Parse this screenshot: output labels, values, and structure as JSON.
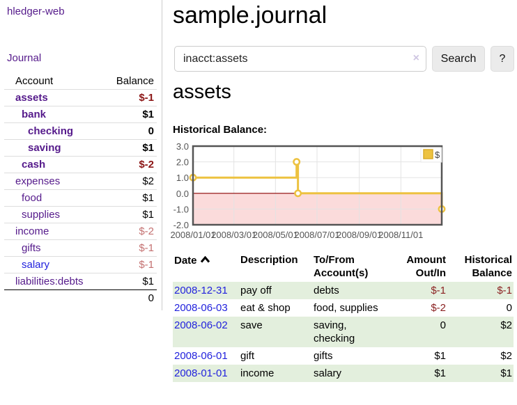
{
  "app": {
    "brand": "hledger-web",
    "nav_journal": "Journal"
  },
  "sidebar": {
    "header": {
      "account": "Account",
      "balance": "Balance"
    },
    "accounts": [
      {
        "name": "assets",
        "level": 0,
        "bold": true,
        "link": "purple",
        "balance": "$-1",
        "balance_class": "neg-strong"
      },
      {
        "name": "bank",
        "level": 1,
        "bold": true,
        "link": "purple",
        "balance": "$1",
        "balance_class": "pos-strong"
      },
      {
        "name": "checking",
        "level": 2,
        "bold": true,
        "link": "purple",
        "balance": "0",
        "balance_class": "pos-strong"
      },
      {
        "name": "saving",
        "level": 2,
        "bold": true,
        "link": "purple",
        "balance": "$1",
        "balance_class": "pos-strong"
      },
      {
        "name": "cash",
        "level": 1,
        "bold": true,
        "link": "purple",
        "balance": "$-2",
        "balance_class": "neg-strong"
      },
      {
        "name": "expenses",
        "level": 0,
        "bold": false,
        "link": "purple",
        "balance": "$2",
        "balance_class": "pos"
      },
      {
        "name": "food",
        "level": 1,
        "bold": false,
        "link": "purple",
        "balance": "$1",
        "balance_class": "pos"
      },
      {
        "name": "supplies",
        "level": 1,
        "bold": false,
        "link": "purple",
        "balance": "$1",
        "balance_class": "pos"
      },
      {
        "name": "income",
        "level": 0,
        "bold": false,
        "link": "purple",
        "balance": "$-2",
        "balance_class": "neg-soft"
      },
      {
        "name": "gifts",
        "level": 1,
        "bold": false,
        "link": "purple",
        "balance": "$-1",
        "balance_class": "neg-soft"
      },
      {
        "name": "salary",
        "level": 1,
        "bold": false,
        "link": "blue",
        "balance": "$-1",
        "balance_class": "neg-soft"
      },
      {
        "name": "liabilities:debts",
        "level": 0,
        "bold": false,
        "link": "purple",
        "balance": "$1",
        "balance_class": "pos"
      }
    ],
    "total": "0"
  },
  "header": {
    "title": "sample.journal"
  },
  "search": {
    "value": "inacct:assets",
    "clear_icon": "×",
    "button": "Search",
    "help": "?"
  },
  "account_page": {
    "title": "assets",
    "chart_label": "Historical Balance:"
  },
  "chart_data": {
    "type": "line",
    "title": "Historical Balance:",
    "series": [
      {
        "name": "$",
        "color": "#edc240",
        "step": true,
        "points": [
          [
            "2008-01-01",
            1
          ],
          [
            "2008-06-01",
            2
          ],
          [
            "2008-06-03",
            0
          ],
          [
            "2008-12-31",
            -1
          ]
        ]
      }
    ],
    "xlim": [
      "2008-01-01",
      "2008-12-31"
    ],
    "ylim": [
      -2.0,
      3.0
    ],
    "yticks": [
      3.0,
      2.0,
      1.0,
      0.0,
      -1.0,
      -2.0
    ],
    "xticks": [
      "2008/01/01",
      "2008/03/01",
      "2008/05/01",
      "2008/07/01",
      "2008/09/01",
      "2008/11/01"
    ],
    "grid": true,
    "legend": {
      "label": "$",
      "position": "top-right"
    },
    "negative_region_color": "#fbdbdb",
    "zero_line_color": "#8b0000",
    "border_color": "#545454",
    "gridline_color": "#e3e3e3",
    "tick_label_color": "#545454"
  },
  "register": {
    "columns": [
      {
        "label1": "Date",
        "sorted": true
      },
      {
        "label1": "Description"
      },
      {
        "label1": "To/From",
        "label2": "Account(s)"
      },
      {
        "label1": "Amount",
        "label2": "Out/In",
        "align": "right"
      },
      {
        "label1": "Historical",
        "label2": "Balance",
        "align": "right"
      }
    ],
    "rows": [
      {
        "date": "2008-12-31",
        "description": "pay off",
        "accounts": "debts",
        "amount": "$-1",
        "amount_negative": true,
        "balance": "$-1",
        "balance_negative": true
      },
      {
        "date": "2008-06-03",
        "description": "eat & shop",
        "accounts": "food, supplies",
        "amount": "$-2",
        "amount_negative": true,
        "balance": "0",
        "balance_negative": false
      },
      {
        "date": "2008-06-02",
        "description": "save",
        "accounts": "saving, checking",
        "amount": "0",
        "amount_negative": false,
        "balance": "$2",
        "balance_negative": false
      },
      {
        "date": "2008-06-01",
        "description": "gift",
        "accounts": "gifts",
        "amount": "$1",
        "amount_negative": false,
        "balance": "$2",
        "balance_negative": false
      },
      {
        "date": "2008-01-01",
        "description": "income",
        "accounts": "salary",
        "amount": "$1",
        "amount_negative": false,
        "balance": "$1",
        "balance_negative": false
      }
    ]
  }
}
